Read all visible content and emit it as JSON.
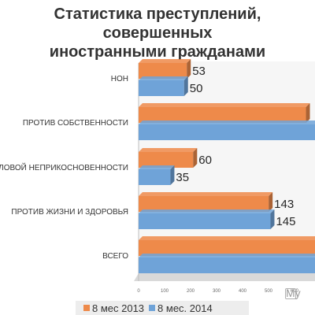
{
  "title_lines": [
    "Статистика преступлений, совершенных",
    "иностранными гражданами"
  ],
  "watermark": "My",
  "colors": {
    "s2013": "#ee8a4a",
    "s2014": "#6fa3d8",
    "floor": "#d9d9d9"
  },
  "chart_data": {
    "type": "bar",
    "orientation": "horizontal",
    "title": "Статистика преступлений, совершенных иностранными гражданами",
    "categories": [
      "НОН",
      "ПРОТИВ СОБСТВЕННОСТИ",
      "ПОЛОВОЙ НЕПРИКОСНОВЕННОСТИ",
      "ПРОТИВ ЖИЗНИ И ЗДОРОВЬЯ",
      "ВСЕГО"
    ],
    "series": [
      {
        "name": "8 мес 2013",
        "values": [
          53,
          184,
          60,
          143,
          600
        ]
      },
      {
        "name": "8 мес. 2014",
        "values": [
          50,
          223,
          35,
          145,
          600
        ]
      }
    ],
    "xticks": [
      "0",
      "100",
      "200",
      "300",
      "400",
      "500",
      "600"
    ],
    "xlim": [
      0,
      600
    ],
    "legend": "bottom"
  }
}
